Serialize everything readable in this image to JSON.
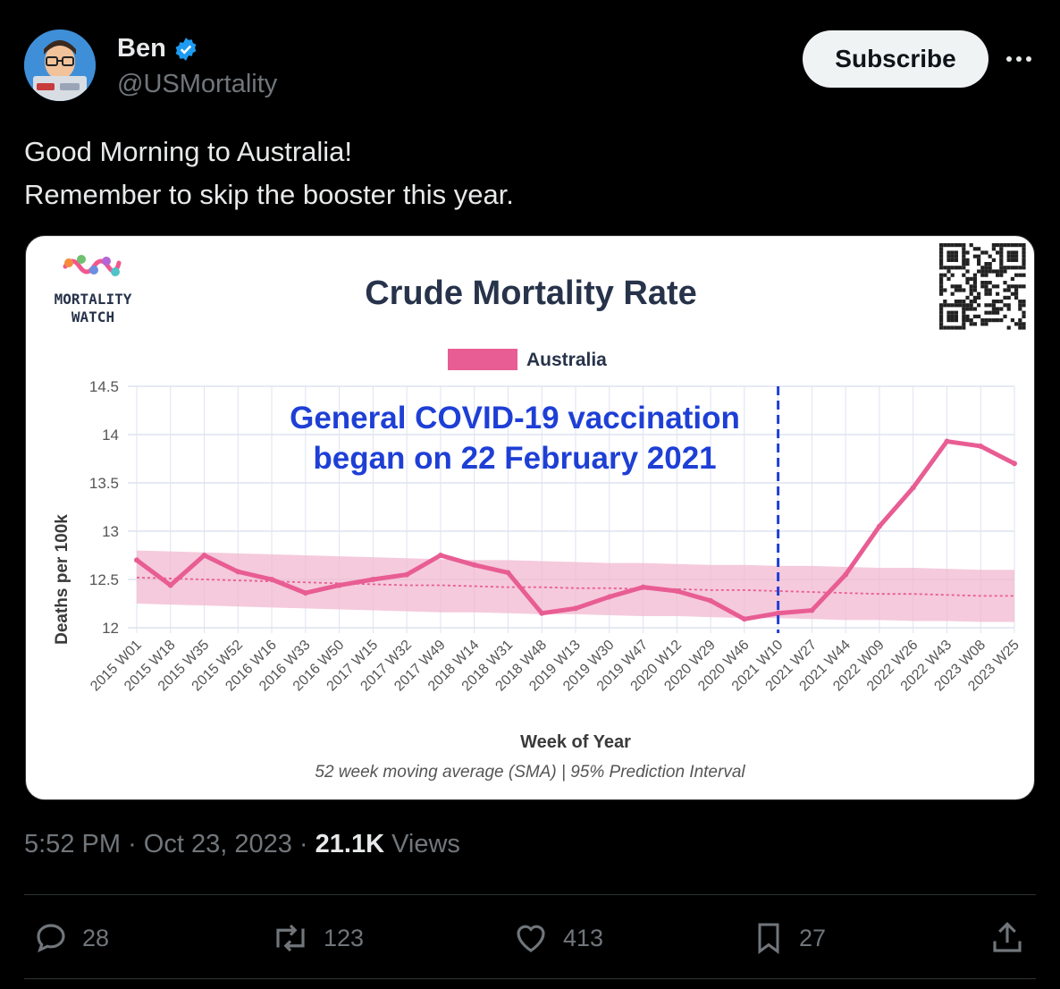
{
  "author": {
    "name": "Ben",
    "handle": "@USMortality",
    "avatar_badge_text": "MORTALITY WATCH"
  },
  "subscribe_label": "Subscribe",
  "tweet_lines": [
    "Good Morning to Australia!",
    "Remember to skip the booster this year."
  ],
  "card": {
    "logo_text": [
      "MORTALITY",
      "WATCH"
    ],
    "annotation_lines": [
      "General COVID-19 vaccination",
      "began on 22 February 2021"
    ],
    "subtitle": "52 week moving average (SMA) | 95% Prediction Interval"
  },
  "chart_data": {
    "type": "line",
    "title": "Crude Mortality Rate",
    "xlabel": "Week of Year",
    "ylabel": "Deaths per 100k",
    "ylim": [
      12,
      14.5
    ],
    "yticks": [
      "14.5",
      "14",
      "13.5",
      "13",
      "12.5",
      "12"
    ],
    "categories": [
      "2015 W01",
      "2015 W18",
      "2015 W35",
      "2015 W52",
      "2016 W16",
      "2016 W33",
      "2016 W50",
      "2017 W15",
      "2017 W32",
      "2017 W49",
      "2018 W14",
      "2018 W31",
      "2018 W48",
      "2019 W13",
      "2019 W30",
      "2019 W47",
      "2020 W12",
      "2020 W29",
      "2020 W46",
      "2021 W10",
      "2021 W27",
      "2021 W44",
      "2022 W09",
      "2022 W26",
      "2022 W43",
      "2023 W08",
      "2023 W25"
    ],
    "legend": [
      "Australia"
    ],
    "legend_position": "top",
    "grid": true,
    "series": [
      {
        "name": "Australia",
        "color": "#e85d93",
        "values": [
          12.7,
          12.44,
          12.75,
          12.58,
          12.5,
          12.36,
          12.44,
          12.5,
          12.55,
          12.75,
          12.65,
          12.57,
          12.15,
          12.2,
          12.32,
          12.42,
          12.38,
          12.28,
          12.09,
          12.15,
          12.18,
          12.55,
          13.05,
          13.45,
          13.93,
          13.88,
          13.7
        ]
      }
    ],
    "baseline": [
      12.52,
      12.51,
      12.5,
      12.49,
      12.48,
      12.47,
      12.46,
      12.45,
      12.44,
      12.44,
      12.43,
      12.42,
      12.42,
      12.41,
      12.41,
      12.4,
      12.4,
      12.39,
      12.39,
      12.38,
      12.37,
      12.36,
      12.35,
      12.35,
      12.34,
      12.33,
      12.33
    ],
    "pi_upper": [
      12.8,
      12.79,
      12.78,
      12.77,
      12.76,
      12.75,
      12.74,
      12.73,
      12.72,
      12.71,
      12.7,
      12.7,
      12.69,
      12.68,
      12.67,
      12.67,
      12.66,
      12.65,
      12.65,
      12.64,
      12.64,
      12.63,
      12.62,
      12.62,
      12.61,
      12.6,
      12.6
    ],
    "pi_lower": [
      12.25,
      12.24,
      12.23,
      12.22,
      12.21,
      12.2,
      12.19,
      12.18,
      12.17,
      12.16,
      12.16,
      12.15,
      12.14,
      12.14,
      12.13,
      12.12,
      12.12,
      12.11,
      12.1,
      12.1,
      12.09,
      12.08,
      12.08,
      12.07,
      12.07,
      12.06,
      12.06
    ],
    "vline_category": "2021 W10"
  },
  "footer": {
    "time": "5:52 PM",
    "date": "Oct 23, 2023",
    "views_count": "21.1K",
    "views_label": "Views"
  },
  "actions": {
    "replies": "28",
    "retweets": "123",
    "likes": "413",
    "bookmarks": "27"
  },
  "colors": {
    "accent": "#1d9bf0",
    "series": "#e85d93",
    "annotation": "#1e3fd6"
  }
}
